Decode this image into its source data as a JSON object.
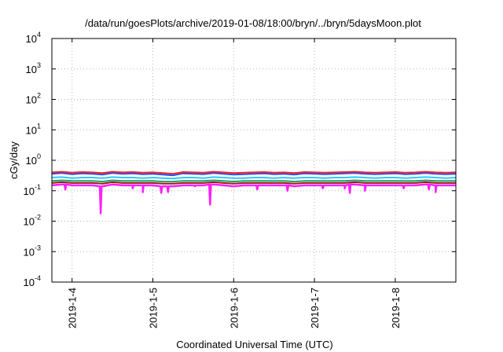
{
  "chart_data": {
    "type": "line",
    "title": "/data/run/goesPlots/archive/2019-01-08/18:00/bryn/../bryn/5daysMoon.plot",
    "xlabel": "Coordinated Universal Time (UTC)",
    "ylabel": "cGy/day",
    "yscale": "log",
    "ylim": [
      0.0001,
      10000
    ],
    "y_ticks": [
      {
        "base": "10",
        "exp": "-4",
        "value": 0.0001
      },
      {
        "base": "10",
        "exp": "-3",
        "value": 0.001
      },
      {
        "base": "10",
        "exp": "-2",
        "value": 0.01
      },
      {
        "base": "10",
        "exp": "-1",
        "value": 0.1
      },
      {
        "base": "10",
        "exp": "0",
        "value": 1
      },
      {
        "base": "10",
        "exp": "1",
        "value": 10
      },
      {
        "base": "10",
        "exp": "2",
        "value": 100
      },
      {
        "base": "10",
        "exp": "3",
        "value": 1000
      },
      {
        "base": "10",
        "exp": "4",
        "value": 10000
      }
    ],
    "xlim": [
      "2019-01-03T18:00",
      "2019-01-08T18:00"
    ],
    "x_ticks": [
      {
        "label": "2019-1-4",
        "value": "2019-01-04T00:00"
      },
      {
        "label": "2019-1-5",
        "value": "2019-01-05T00:00"
      },
      {
        "label": "2019-1-6",
        "value": "2019-01-06T00:00"
      },
      {
        "label": "2019-1-7",
        "value": "2019-01-07T00:00"
      },
      {
        "label": "2019-1-8",
        "value": "2019-01-08T00:00"
      }
    ],
    "grid": true,
    "legend": "none",
    "x": [
      "2019-01-03T18:00",
      "2019-01-03T21:00",
      "2019-01-04T00:00",
      "2019-01-04T03:00",
      "2019-01-04T06:00",
      "2019-01-04T09:00",
      "2019-01-04T12:00",
      "2019-01-04T15:00",
      "2019-01-04T18:00",
      "2019-01-04T21:00",
      "2019-01-05T00:00",
      "2019-01-05T03:00",
      "2019-01-05T06:00",
      "2019-01-05T09:00",
      "2019-01-05T12:00",
      "2019-01-05T15:00",
      "2019-01-05T18:00",
      "2019-01-05T21:00",
      "2019-01-06T00:00",
      "2019-01-06T03:00",
      "2019-01-06T06:00",
      "2019-01-06T09:00",
      "2019-01-06T12:00",
      "2019-01-06T15:00",
      "2019-01-06T18:00",
      "2019-01-06T21:00",
      "2019-01-07T00:00",
      "2019-01-07T03:00",
      "2019-01-07T06:00",
      "2019-01-07T09:00",
      "2019-01-07T12:00",
      "2019-01-07T15:00",
      "2019-01-07T18:00",
      "2019-01-07T21:00",
      "2019-01-08T00:00",
      "2019-01-08T03:00",
      "2019-01-08T06:00",
      "2019-01-08T09:00",
      "2019-01-08T12:00",
      "2019-01-08T15:00",
      "2019-01-08T18:00"
    ],
    "series": [
      {
        "color": "#ff2020",
        "values": [
          0.4,
          0.42,
          0.39,
          0.41,
          0.4,
          0.38,
          0.42,
          0.4,
          0.41,
          0.39,
          0.4,
          0.38,
          0.36,
          0.41,
          0.4,
          0.39,
          0.42,
          0.4,
          0.38,
          0.39,
          0.4,
          0.41,
          0.39,
          0.4,
          0.38,
          0.41,
          0.4,
          0.39,
          0.4,
          0.41,
          0.42,
          0.4,
          0.39,
          0.4,
          0.41,
          0.39,
          0.4,
          0.42,
          0.4,
          0.39,
          0.4
        ]
      },
      {
        "color": "#2050ff",
        "values": [
          0.36,
          0.38,
          0.35,
          0.37,
          0.36,
          0.34,
          0.38,
          0.36,
          0.37,
          0.35,
          0.36,
          0.34,
          0.32,
          0.37,
          0.36,
          0.35,
          0.38,
          0.36,
          0.34,
          0.35,
          0.36,
          0.37,
          0.35,
          0.36,
          0.34,
          0.37,
          0.36,
          0.35,
          0.36,
          0.37,
          0.38,
          0.36,
          0.35,
          0.36,
          0.37,
          0.35,
          0.36,
          0.38,
          0.36,
          0.35,
          0.36
        ]
      },
      {
        "color": "#30c8ff",
        "values": [
          0.27,
          0.28,
          0.26,
          0.27,
          0.27,
          0.26,
          0.28,
          0.27,
          0.27,
          0.26,
          0.27,
          0.26,
          0.25,
          0.27,
          0.27,
          0.26,
          0.28,
          0.27,
          0.26,
          0.26,
          0.27,
          0.27,
          0.26,
          0.27,
          0.26,
          0.27,
          0.27,
          0.26,
          0.27,
          0.27,
          0.28,
          0.27,
          0.26,
          0.27,
          0.27,
          0.26,
          0.27,
          0.28,
          0.27,
          0.26,
          0.27
        ]
      },
      {
        "color": "#20a060",
        "values": [
          0.21,
          0.22,
          0.21,
          0.21,
          0.21,
          0.2,
          0.22,
          0.21,
          0.21,
          0.21,
          0.21,
          0.2,
          0.2,
          0.21,
          0.21,
          0.21,
          0.22,
          0.21,
          0.2,
          0.21,
          0.21,
          0.21,
          0.21,
          0.21,
          0.2,
          0.21,
          0.21,
          0.21,
          0.21,
          0.21,
          0.22,
          0.21,
          0.21,
          0.21,
          0.21,
          0.21,
          0.21,
          0.22,
          0.21,
          0.21,
          0.21
        ]
      },
      {
        "color": "#9a1a1a",
        "values": [
          0.18,
          0.19,
          0.18,
          0.18,
          0.18,
          0.17,
          0.19,
          0.18,
          0.18,
          0.18,
          0.18,
          0.17,
          0.17,
          0.18,
          0.18,
          0.18,
          0.19,
          0.18,
          0.17,
          0.18,
          0.18,
          0.18,
          0.18,
          0.18,
          0.17,
          0.18,
          0.18,
          0.18,
          0.18,
          0.18,
          0.19,
          0.18,
          0.18,
          0.18,
          0.18,
          0.18,
          0.18,
          0.19,
          0.18,
          0.18,
          0.18
        ]
      },
      {
        "color": "#ff20ff",
        "values": [
          0.15,
          0.16,
          0.15,
          0.15,
          0.15,
          0.14,
          0.16,
          0.15,
          0.15,
          0.15,
          0.15,
          0.14,
          0.14,
          0.15,
          0.15,
          0.15,
          0.16,
          0.15,
          0.14,
          0.15,
          0.15,
          0.15,
          0.15,
          0.15,
          0.14,
          0.15,
          0.15,
          0.15,
          0.15,
          0.15,
          0.16,
          0.15,
          0.15,
          0.15,
          0.15,
          0.15,
          0.15,
          0.16,
          0.15,
          0.15,
          0.15
        ],
        "dips": [
          {
            "x": "2019-01-03T22:00",
            "y": 0.11
          },
          {
            "x": "2019-01-04T08:30",
            "y": 0.018
          },
          {
            "x": "2019-01-04T18:00",
            "y": 0.12
          },
          {
            "x": "2019-01-04T21:00",
            "y": 0.09
          },
          {
            "x": "2019-01-05T02:30",
            "y": 0.085
          },
          {
            "x": "2019-01-05T04:30",
            "y": 0.09
          },
          {
            "x": "2019-01-05T12:30",
            "y": 0.14
          },
          {
            "x": "2019-01-05T17:00",
            "y": 0.035
          },
          {
            "x": "2019-01-06T07:00",
            "y": 0.11
          },
          {
            "x": "2019-01-06T16:00",
            "y": 0.1
          },
          {
            "x": "2019-01-07T02:30",
            "y": 0.12
          },
          {
            "x": "2019-01-07T09:00",
            "y": 0.12
          },
          {
            "x": "2019-01-07T10:30",
            "y": 0.085
          },
          {
            "x": "2019-01-07T15:00",
            "y": 0.1
          },
          {
            "x": "2019-01-08T02:30",
            "y": 0.12
          },
          {
            "x": "2019-01-08T10:00",
            "y": 0.11
          },
          {
            "x": "2019-01-08T12:00",
            "y": 0.09
          }
        ]
      }
    ]
  }
}
